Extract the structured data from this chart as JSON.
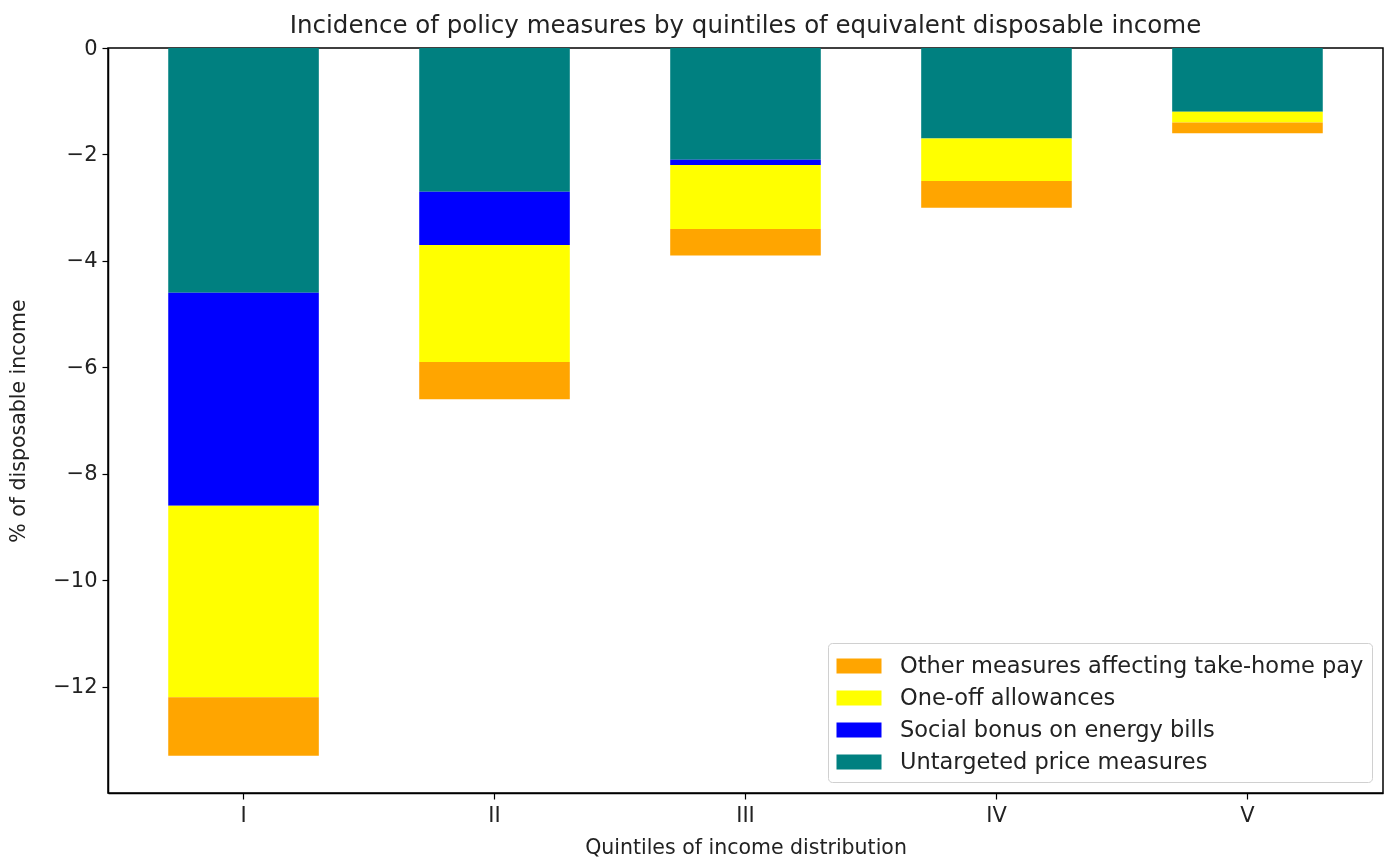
{
  "chart_data": {
    "type": "bar",
    "title": "Incidence of policy measures by quintiles of equivalent disposable income",
    "xlabel": "Quintiles of income distribution",
    "ylabel": "% of disposable income",
    "categories": [
      "I",
      "II",
      "III",
      "IV",
      "V"
    ],
    "stacked": true,
    "series": [
      {
        "name": "Untargeted price measures",
        "color": "#008080",
        "values": [
          -4.6,
          -2.7,
          -2.1,
          -1.7,
          -1.2
        ]
      },
      {
        "name": "Social bonus on energy bills",
        "color": "#0000ff",
        "values": [
          -4.0,
          -1.0,
          -0.1,
          0,
          0
        ]
      },
      {
        "name": "One-off allowances",
        "color": "#ffff00",
        "values": [
          -3.6,
          -2.2,
          -1.2,
          -0.8,
          -0.2
        ]
      },
      {
        "name": "Other measures affecting take-home pay",
        "color": "#ffa500",
        "values": [
          -1.1,
          -0.7,
          -0.5,
          -0.5,
          -0.2
        ]
      }
    ],
    "ylim": [
      -14,
      0
    ],
    "yticks": [
      -12,
      -10,
      -8,
      -6,
      -4,
      -2,
      0
    ],
    "grid": false,
    "legend": "bottom right"
  }
}
